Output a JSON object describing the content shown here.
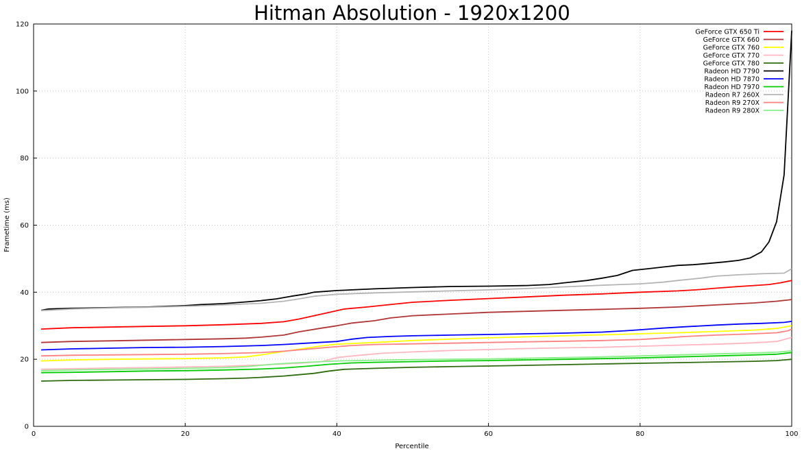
{
  "chart_data": {
    "type": "line",
    "title": "Hitman Absolution - 1920x1200",
    "xlabel": "Percentile",
    "ylabel": "Frametime (ms)",
    "xlim": [
      0,
      100
    ],
    "ylim": [
      0,
      120
    ],
    "xticks": [
      0,
      20,
      40,
      60,
      80,
      100
    ],
    "yticks": [
      0,
      20,
      40,
      60,
      80,
      100,
      120
    ],
    "grid": true,
    "legend_position": "top-right",
    "series": [
      {
        "name": "GeForce GTX 650 Ti",
        "color": "#ff0000",
        "points": [
          [
            1,
            29
          ],
          [
            5,
            29.4
          ],
          [
            10,
            29.6
          ],
          [
            15,
            29.8
          ],
          [
            20,
            30
          ],
          [
            25,
            30.3
          ],
          [
            30,
            30.7
          ],
          [
            33,
            31.2
          ],
          [
            35,
            32
          ],
          [
            37,
            33
          ],
          [
            39,
            34
          ],
          [
            41,
            35
          ],
          [
            44,
            35.6
          ],
          [
            47,
            36.3
          ],
          [
            50,
            37
          ],
          [
            55,
            37.6
          ],
          [
            60,
            38.1
          ],
          [
            65,
            38.6
          ],
          [
            70,
            39.1
          ],
          [
            75,
            39.5
          ],
          [
            80,
            40
          ],
          [
            85,
            40.4
          ],
          [
            88,
            40.8
          ],
          [
            90,
            41.2
          ],
          [
            93,
            41.7
          ],
          [
            95,
            42
          ],
          [
            97,
            42.3
          ],
          [
            98.5,
            42.8
          ],
          [
            100,
            43.5
          ]
        ]
      },
      {
        "name": "GeForce GTX 660",
        "color": "#b03434",
        "points": [
          [
            1,
            25
          ],
          [
            5,
            25.3
          ],
          [
            10,
            25.5
          ],
          [
            15,
            25.7
          ],
          [
            20,
            25.9
          ],
          [
            25,
            26.1
          ],
          [
            28,
            26.3
          ],
          [
            30,
            26.6
          ],
          [
            33,
            27.2
          ],
          [
            35,
            28.2
          ],
          [
            38,
            29.3
          ],
          [
            40,
            30
          ],
          [
            42,
            30.8
          ],
          [
            45,
            31.5
          ],
          [
            47,
            32.3
          ],
          [
            50,
            33
          ],
          [
            55,
            33.5
          ],
          [
            60,
            34
          ],
          [
            65,
            34.3
          ],
          [
            70,
            34.6
          ],
          [
            75,
            34.9
          ],
          [
            80,
            35.2
          ],
          [
            85,
            35.6
          ],
          [
            90,
            36.2
          ],
          [
            95,
            36.8
          ],
          [
            98,
            37.3
          ],
          [
            100,
            37.8
          ]
        ]
      },
      {
        "name": "GeForce GTX 760",
        "color": "#ffff00",
        "points": [
          [
            1,
            19.5
          ],
          [
            5,
            19.8
          ],
          [
            10,
            20
          ],
          [
            15,
            20.1
          ],
          [
            20,
            20.2
          ],
          [
            25,
            20.4
          ],
          [
            28,
            20.7
          ],
          [
            30,
            21.3
          ],
          [
            32,
            22
          ],
          [
            35,
            23
          ],
          [
            38,
            24
          ],
          [
            40,
            24.5
          ],
          [
            45,
            25
          ],
          [
            50,
            25.6
          ],
          [
            55,
            26
          ],
          [
            60,
            26.4
          ],
          [
            65,
            26.7
          ],
          [
            70,
            27
          ],
          [
            75,
            27.3
          ],
          [
            80,
            27.6
          ],
          [
            85,
            27.9
          ],
          [
            90,
            28.3
          ],
          [
            95,
            28.7
          ],
          [
            98,
            29.2
          ],
          [
            100,
            30
          ]
        ]
      },
      {
        "name": "GeForce GTX 770",
        "color": "#ffb6c1",
        "points": [
          [
            1,
            17
          ],
          [
            5,
            17.2
          ],
          [
            10,
            17.4
          ],
          [
            15,
            17.5
          ],
          [
            20,
            17.7
          ],
          [
            25,
            17.9
          ],
          [
            30,
            18.3
          ],
          [
            35,
            18.8
          ],
          [
            38,
            19.3
          ],
          [
            40,
            20.5
          ],
          [
            43,
            21.2
          ],
          [
            46,
            21.8
          ],
          [
            50,
            22.2
          ],
          [
            55,
            22.6
          ],
          [
            60,
            22.9
          ],
          [
            65,
            23.2
          ],
          [
            70,
            23.4
          ],
          [
            75,
            23.6
          ],
          [
            80,
            23.9
          ],
          [
            85,
            24.2
          ],
          [
            90,
            24.5
          ],
          [
            95,
            24.9
          ],
          [
            98,
            25.3
          ],
          [
            100,
            26.5
          ]
        ]
      },
      {
        "name": "GeForce GTX 780",
        "color": "#2e6b0e",
        "points": [
          [
            1,
            13.5
          ],
          [
            5,
            13.7
          ],
          [
            10,
            13.8
          ],
          [
            15,
            13.9
          ],
          [
            20,
            14
          ],
          [
            25,
            14.2
          ],
          [
            28,
            14.4
          ],
          [
            30,
            14.6
          ],
          [
            33,
            15
          ],
          [
            35,
            15.4
          ],
          [
            37,
            15.8
          ],
          [
            39,
            16.5
          ],
          [
            41,
            17
          ],
          [
            45,
            17.3
          ],
          [
            50,
            17.6
          ],
          [
            55,
            17.8
          ],
          [
            60,
            18
          ],
          [
            65,
            18.2
          ],
          [
            70,
            18.4
          ],
          [
            75,
            18.6
          ],
          [
            80,
            18.8
          ],
          [
            85,
            19
          ],
          [
            90,
            19.2
          ],
          [
            95,
            19.4
          ],
          [
            98,
            19.6
          ],
          [
            100,
            20
          ]
        ]
      },
      {
        "name": "Radeon HD 7790",
        "color": "#000000",
        "points": [
          [
            1,
            34.6
          ],
          [
            2,
            35
          ],
          [
            5,
            35.2
          ],
          [
            10,
            35.4
          ],
          [
            15,
            35.6
          ],
          [
            20,
            36
          ],
          [
            22,
            36.3
          ],
          [
            25,
            36.6
          ],
          [
            28,
            37.1
          ],
          [
            30,
            37.5
          ],
          [
            32,
            38
          ],
          [
            34,
            38.8
          ],
          [
            36,
            39.5
          ],
          [
            37,
            40
          ],
          [
            40,
            40.5
          ],
          [
            45,
            41
          ],
          [
            50,
            41.4
          ],
          [
            55,
            41.7
          ],
          [
            60,
            41.8
          ],
          [
            65,
            42
          ],
          [
            68,
            42.3
          ],
          [
            70,
            42.8
          ],
          [
            73,
            43.5
          ],
          [
            75,
            44.2
          ],
          [
            77,
            45
          ],
          [
            79,
            46.5
          ],
          [
            81,
            47
          ],
          [
            83,
            47.5
          ],
          [
            85,
            48
          ],
          [
            87,
            48.2
          ],
          [
            89,
            48.6
          ],
          [
            91,
            49
          ],
          [
            93,
            49.5
          ],
          [
            94.5,
            50.2
          ],
          [
            96,
            52
          ],
          [
            97,
            55
          ],
          [
            98,
            61
          ],
          [
            99,
            75
          ],
          [
            100,
            118
          ]
        ]
      },
      {
        "name": "Radeon HD 7870",
        "color": "#0000ff",
        "points": [
          [
            1,
            22.8
          ],
          [
            5,
            23.1
          ],
          [
            10,
            23.3
          ],
          [
            15,
            23.5
          ],
          [
            20,
            23.6
          ],
          [
            25,
            23.8
          ],
          [
            30,
            24.1
          ],
          [
            33,
            24.4
          ],
          [
            36,
            24.8
          ],
          [
            40,
            25.3
          ],
          [
            42,
            26
          ],
          [
            44,
            26.5
          ],
          [
            47,
            26.8
          ],
          [
            50,
            27
          ],
          [
            55,
            27.2
          ],
          [
            60,
            27.4
          ],
          [
            65,
            27.6
          ],
          [
            70,
            27.8
          ],
          [
            75,
            28.1
          ],
          [
            78,
            28.5
          ],
          [
            80,
            28.8
          ],
          [
            83,
            29.3
          ],
          [
            86,
            29.7
          ],
          [
            90,
            30.2
          ],
          [
            93,
            30.5
          ],
          [
            96,
            30.7
          ],
          [
            99,
            31
          ],
          [
            100,
            31.3
          ]
        ]
      },
      {
        "name": "Radeon HD 7970",
        "color": "#00cc00",
        "points": [
          [
            1,
            16
          ],
          [
            5,
            16.1
          ],
          [
            10,
            16.3
          ],
          [
            15,
            16.5
          ],
          [
            20,
            16.6
          ],
          [
            25,
            16.8
          ],
          [
            30,
            17.1
          ],
          [
            33,
            17.4
          ],
          [
            36,
            17.9
          ],
          [
            39,
            18.5
          ],
          [
            42,
            18.9
          ],
          [
            45,
            19.1
          ],
          [
            50,
            19.3
          ],
          [
            55,
            19.5
          ],
          [
            60,
            19.6
          ],
          [
            65,
            19.8
          ],
          [
            70,
            20
          ],
          [
            75,
            20.2
          ],
          [
            80,
            20.4
          ],
          [
            85,
            20.7
          ],
          [
            90,
            21
          ],
          [
            95,
            21.3
          ],
          [
            98,
            21.5
          ],
          [
            100,
            22
          ]
        ]
      },
      {
        "name": "Radeon R7 260X",
        "color": "#b4b4b4",
        "points": [
          [
            1,
            34.5
          ],
          [
            5,
            35
          ],
          [
            10,
            35.3
          ],
          [
            15,
            35.5
          ],
          [
            20,
            35.8
          ],
          [
            25,
            36.2
          ],
          [
            30,
            36.7
          ],
          [
            33,
            37.3
          ],
          [
            35,
            38
          ],
          [
            37,
            38.8
          ],
          [
            40,
            39.4
          ],
          [
            45,
            39.8
          ],
          [
            50,
            40.1
          ],
          [
            55,
            40.4
          ],
          [
            60,
            40.7
          ],
          [
            65,
            41.1
          ],
          [
            70,
            41.6
          ],
          [
            75,
            42.1
          ],
          [
            80,
            42.5
          ],
          [
            83,
            43
          ],
          [
            85,
            43.5
          ],
          [
            88,
            44.2
          ],
          [
            90,
            44.8
          ],
          [
            93,
            45.2
          ],
          [
            96,
            45.5
          ],
          [
            99,
            45.7
          ],
          [
            100,
            47
          ]
        ]
      },
      {
        "name": "Radeon R9 270X",
        "color": "#ff8080",
        "points": [
          [
            1,
            21
          ],
          [
            5,
            21.2
          ],
          [
            10,
            21.3
          ],
          [
            15,
            21.4
          ],
          [
            20,
            21.5
          ],
          [
            25,
            21.7
          ],
          [
            30,
            22
          ],
          [
            33,
            22.4
          ],
          [
            36,
            23
          ],
          [
            39,
            23.6
          ],
          [
            42,
            24.1
          ],
          [
            45,
            24.4
          ],
          [
            50,
            24.6
          ],
          [
            55,
            24.8
          ],
          [
            60,
            25
          ],
          [
            65,
            25.2
          ],
          [
            70,
            25.4
          ],
          [
            75,
            25.6
          ],
          [
            80,
            25.9
          ],
          [
            83,
            26.3
          ],
          [
            86,
            26.8
          ],
          [
            90,
            27.2
          ],
          [
            95,
            27.6
          ],
          [
            98,
            27.9
          ],
          [
            99.5,
            28.5
          ],
          [
            100,
            29
          ]
        ]
      },
      {
        "name": "Radeon R9 280X",
        "color": "#88ee88",
        "points": [
          [
            1,
            16.6
          ],
          [
            5,
            16.8
          ],
          [
            10,
            17
          ],
          [
            15,
            17.1
          ],
          [
            20,
            17.3
          ],
          [
            25,
            17.5
          ],
          [
            28,
            17.8
          ],
          [
            30,
            18.2
          ],
          [
            32,
            18.6
          ],
          [
            35,
            19
          ],
          [
            38,
            19.3
          ],
          [
            40,
            19.5
          ],
          [
            45,
            19.7
          ],
          [
            50,
            19.9
          ],
          [
            55,
            20
          ],
          [
            60,
            20.1
          ],
          [
            65,
            20.3
          ],
          [
            70,
            20.5
          ],
          [
            75,
            20.7
          ],
          [
            80,
            21
          ],
          [
            85,
            21.3
          ],
          [
            90,
            21.6
          ],
          [
            95,
            21.9
          ],
          [
            98,
            22.1
          ],
          [
            100,
            22.5
          ]
        ]
      }
    ]
  }
}
